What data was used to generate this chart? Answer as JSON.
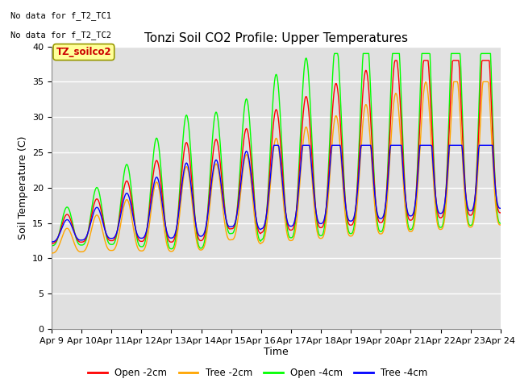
{
  "title": "Tonzi Soil CO2 Profile: Upper Temperatures",
  "ylabel": "Soil Temperature (C)",
  "xlabel": "Time",
  "annotations": [
    "No data for f_T2_TC1",
    "No data for f_T2_TC2"
  ],
  "box_label": "TZ_soilco2",
  "ylim": [
    0,
    40
  ],
  "yticks": [
    0,
    5,
    10,
    15,
    20,
    25,
    30,
    35,
    40
  ],
  "xtick_labels": [
    "Apr 9",
    "Apr 10",
    "Apr 11",
    "Apr 12",
    "Apr 13",
    "Apr 14",
    "Apr 15",
    "Apr 16",
    "Apr 17",
    "Apr 18",
    "Apr 19",
    "Apr 20",
    "Apr 21",
    "Apr 22",
    "Apr 23",
    "Apr 24"
  ],
  "series": [
    {
      "label": "Open -2cm",
      "color": "#ff0000"
    },
    {
      "label": "Tree -2cm",
      "color": "#ffa500"
    },
    {
      "label": "Open -4cm",
      "color": "#00ff00"
    },
    {
      "label": "Tree -4cm",
      "color": "#0000ff"
    }
  ],
  "plot_bg_color": "#e0e0e0",
  "grid_color": "#ffffff",
  "title_fontsize": 11,
  "axis_fontsize": 9,
  "tick_fontsize": 8
}
